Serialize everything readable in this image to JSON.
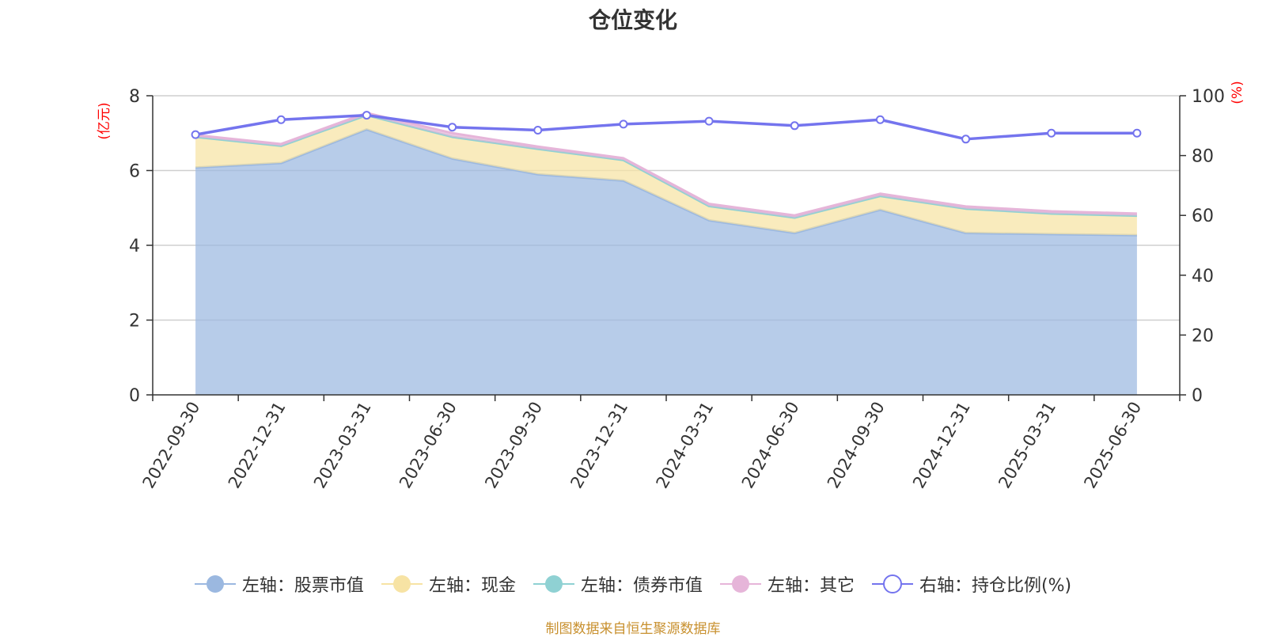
{
  "chart_data": {
    "type": "area",
    "title": "仓位变化",
    "categories": [
      "2022-09-30",
      "2022-12-31",
      "2023-03-31",
      "2023-06-30",
      "2023-09-30",
      "2023-12-31",
      "2024-03-31",
      "2024-06-30",
      "2024-09-30",
      "2024-12-31",
      "2025-03-31",
      "2025-06-30"
    ],
    "left_axis": {
      "label": "(亿元)",
      "range": [
        0,
        8
      ],
      "ticks": [
        0,
        2,
        4,
        6,
        8
      ]
    },
    "right_axis": {
      "label": "(%)",
      "range": [
        0,
        100
      ],
      "ticks": [
        0,
        20,
        40,
        60,
        80,
        100
      ]
    },
    "stacked": true,
    "series": [
      {
        "name": "左轴：股票市值",
        "axis": "left",
        "type": "area",
        "color": "#9bb8e0",
        "values": [
          6.08,
          6.2,
          7.1,
          6.32,
          5.9,
          5.73,
          4.67,
          4.33,
          4.95,
          4.33,
          4.3,
          4.27
        ]
      },
      {
        "name": "左轴：现金",
        "axis": "left",
        "type": "area",
        "color": "#f7e3a4",
        "values": [
          0.82,
          0.46,
          0.38,
          0.58,
          0.68,
          0.55,
          0.38,
          0.41,
          0.37,
          0.65,
          0.55,
          0.52
        ]
      },
      {
        "name": "左轴：债券市值",
        "axis": "left",
        "type": "area",
        "color": "#8fd1d3",
        "values": [
          0,
          0,
          0,
          0,
          0,
          0,
          0,
          0,
          0,
          0,
          0,
          0
        ]
      },
      {
        "name": "左轴：其它",
        "axis": "left",
        "type": "area",
        "color": "#e6b5d9",
        "values": [
          0.05,
          0.05,
          0.06,
          0.1,
          0.06,
          0.05,
          0.06,
          0.06,
          0.06,
          0.06,
          0.06,
          0.06
        ]
      },
      {
        "name": "右轴：持仓比例(%)",
        "axis": "right",
        "type": "line",
        "color": "#7474ee",
        "values": [
          87.0,
          92.0,
          93.5,
          89.5,
          88.5,
          90.5,
          91.5,
          90.0,
          92.0,
          85.5,
          87.5,
          87.5
        ]
      }
    ],
    "grid": true,
    "legend_position": "bottom"
  },
  "source_note": "制图数据来自恒生聚源数据库"
}
